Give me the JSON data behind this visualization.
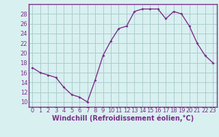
{
  "x": [
    0,
    1,
    2,
    3,
    4,
    5,
    6,
    7,
    8,
    9,
    10,
    11,
    12,
    13,
    14,
    15,
    16,
    17,
    18,
    19,
    20,
    21,
    22,
    23
  ],
  "y": [
    17,
    16,
    15.5,
    15,
    13,
    11.5,
    11,
    10,
    14.5,
    19.5,
    22.5,
    25,
    25.5,
    28.5,
    29,
    29,
    29,
    27,
    28.5,
    28,
    25.5,
    22,
    19.5,
    18
  ],
  "line_color": "#7b2d8b",
  "marker": "D",
  "marker_size": 2,
  "bg_color": "#d9f0f0",
  "grid_color": "#aacccc",
  "xlabel": "Windchill (Refroidissement éolien,°C)",
  "xlabel_fontsize": 7,
  "ylim": [
    9,
    30
  ],
  "yticks": [
    10,
    12,
    14,
    16,
    18,
    20,
    22,
    24,
    26,
    28
  ],
  "xticks": [
    0,
    1,
    2,
    3,
    4,
    5,
    6,
    7,
    8,
    9,
    10,
    11,
    12,
    13,
    14,
    15,
    16,
    17,
    18,
    19,
    20,
    21,
    22,
    23
  ],
  "tick_fontsize": 6,
  "spine_color": "#7b2d8b",
  "line_width": 1.0
}
